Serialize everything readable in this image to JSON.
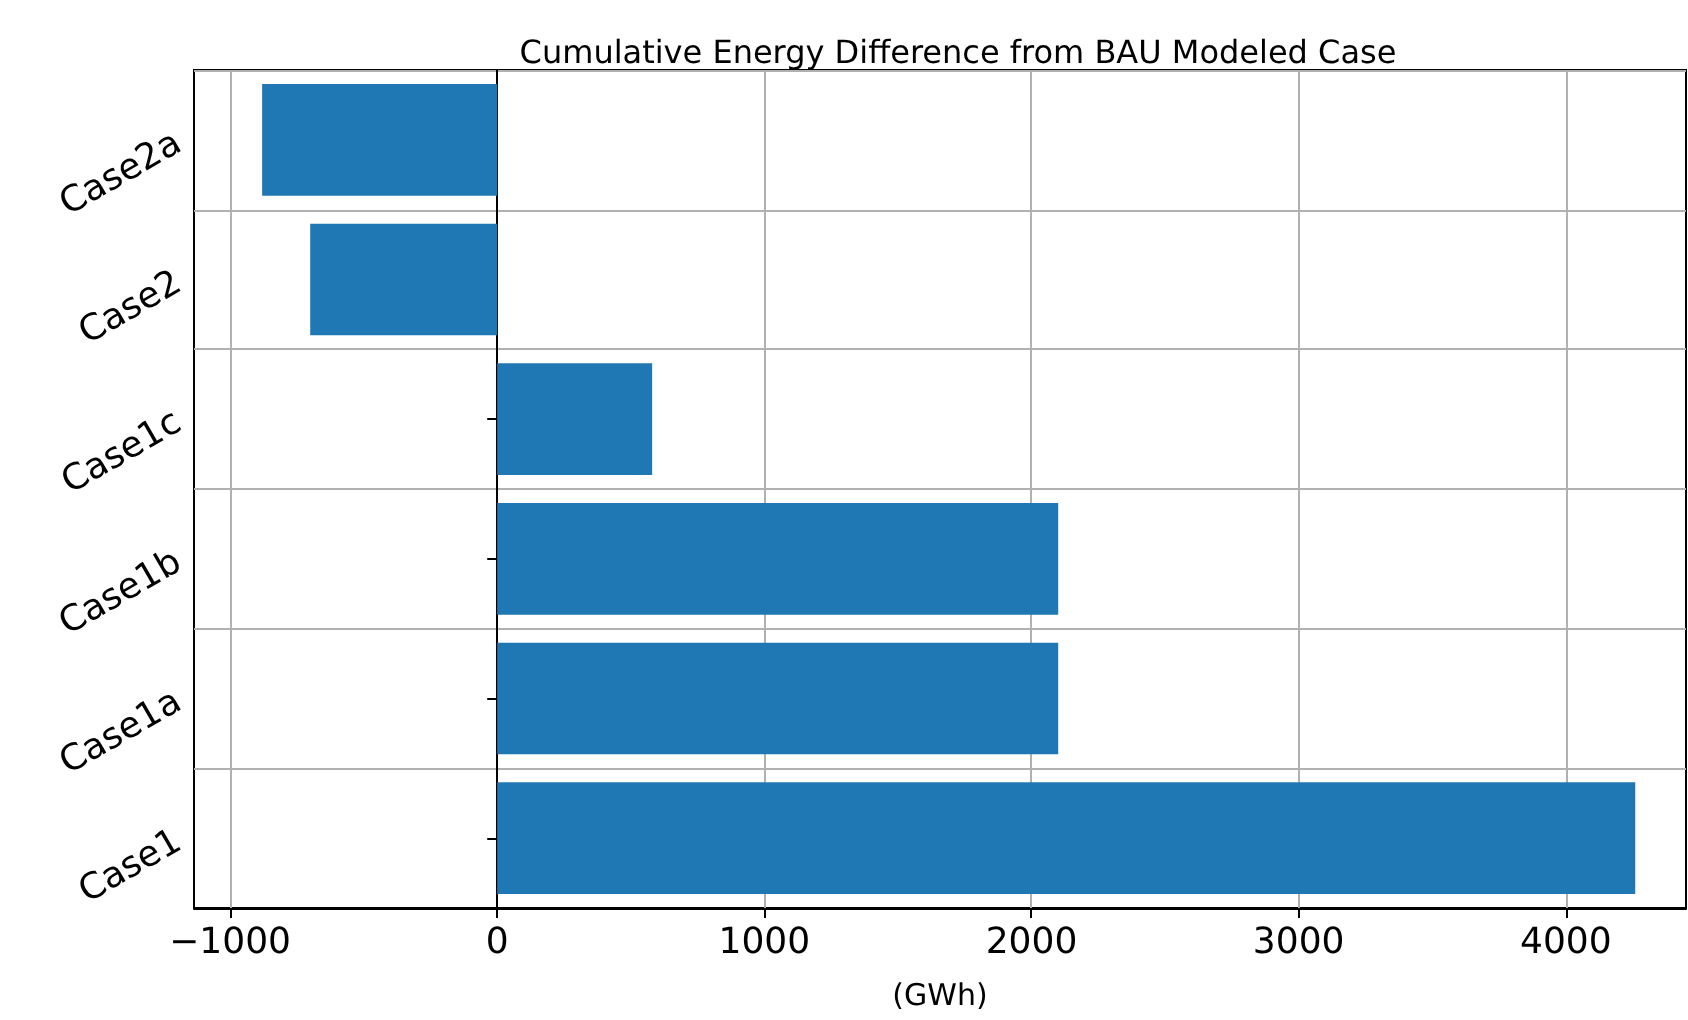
{
  "chart_data": {
    "type": "bar",
    "orientation": "horizontal",
    "title": "Cumulative Energy Difference from BAU Modeled Case",
    "xlabel": "(GWh)",
    "categories": [
      "Case2a",
      "Case2",
      "Case1c",
      "Case1b",
      "Case1a",
      "Case1"
    ],
    "values": [
      -880,
      -700,
      580,
      2100,
      2100,
      4260
    ],
    "color": "#1f77b4",
    "xlim": [
      -1135,
      4450
    ],
    "xticks": [
      -1000,
      0,
      1000,
      2000,
      3000,
      4000
    ],
    "grid": true
  }
}
